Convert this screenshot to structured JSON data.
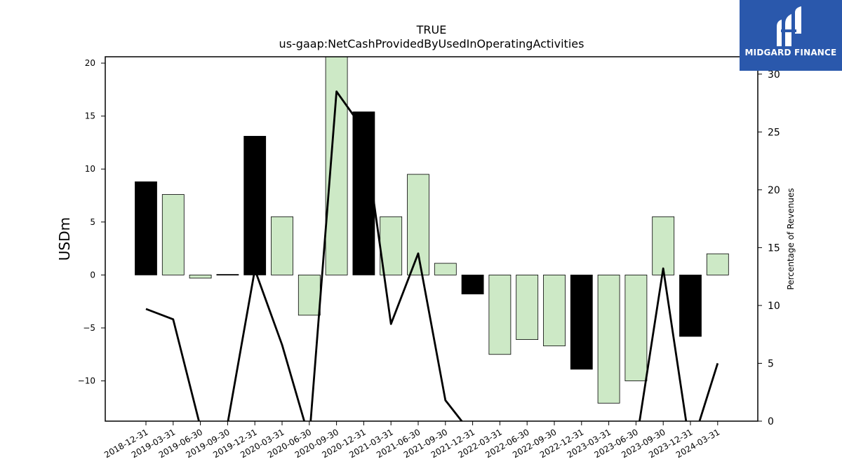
{
  "chart_data": {
    "type": "bar",
    "title": "TRUE",
    "subtitle": "us-gaap:NetCashProvidedByUsedInOperatingActivities",
    "ylabel": "USDm",
    "y2label": "Percentage of Revenues",
    "ylim": [
      -13.8,
      20.6
    ],
    "y2lim": [
      0,
      31.5
    ],
    "yticks": [
      -10,
      -5,
      0,
      5,
      10,
      15,
      20
    ],
    "y2ticks": [
      0,
      5,
      10,
      15,
      20,
      25,
      30
    ],
    "categories": [
      "2018-12-31",
      "2019-03-31",
      "2019-06-30",
      "2019-09-30",
      "2019-12-31",
      "2020-03-31",
      "2020-06-30",
      "2020-09-30",
      "2020-12-31",
      "2021-03-31",
      "2021-06-30",
      "2021-09-30",
      "2021-12-31",
      "2022-03-31",
      "2022-06-30",
      "2022-09-30",
      "2022-12-31",
      "2023-03-31",
      "2023-06-30",
      "2023-09-30",
      "2023-12-31",
      "2024-03-31"
    ],
    "series": [
      {
        "type": "bar",
        "axis": "left",
        "values": [
          8.8,
          7.6,
          -0.3,
          0.05,
          13.1,
          5.5,
          -3.8,
          20.6,
          15.4,
          5.5,
          9.5,
          1.1,
          -1.8,
          -7.5,
          -6.1,
          -6.7,
          -8.9,
          -12.1,
          -10.0,
          5.5,
          -5.8,
          2.0
        ],
        "colors": [
          "#000000",
          "#cde9c6",
          "#cde9c6",
          "#000000",
          "#000000",
          "#cde9c6",
          "#cde9c6",
          "#cde9c6",
          "#000000",
          "#cde9c6",
          "#cde9c6",
          "#cde9c6",
          "#000000",
          "#cde9c6",
          "#cde9c6",
          "#cde9c6",
          "#000000",
          "#cde9c6",
          "#cde9c6",
          "#cde9c6",
          "#000000",
          "#cde9c6"
        ]
      },
      {
        "type": "line",
        "axis": "right",
        "color": "#000000",
        "values": [
          9.7,
          8.8,
          -0.5,
          -0.2,
          13.1,
          6.6,
          -1.5,
          28.5,
          25.2,
          8.4,
          14.5,
          1.8,
          -1.2,
          -2.0,
          -2.5,
          -1.5,
          -2.0,
          -1.5,
          -2.0,
          13.2,
          -2.5,
          5.0
        ]
      }
    ],
    "grid": false
  },
  "logo": {
    "text": "MIDGARD FINANCE",
    "background": "#2a58ac"
  }
}
